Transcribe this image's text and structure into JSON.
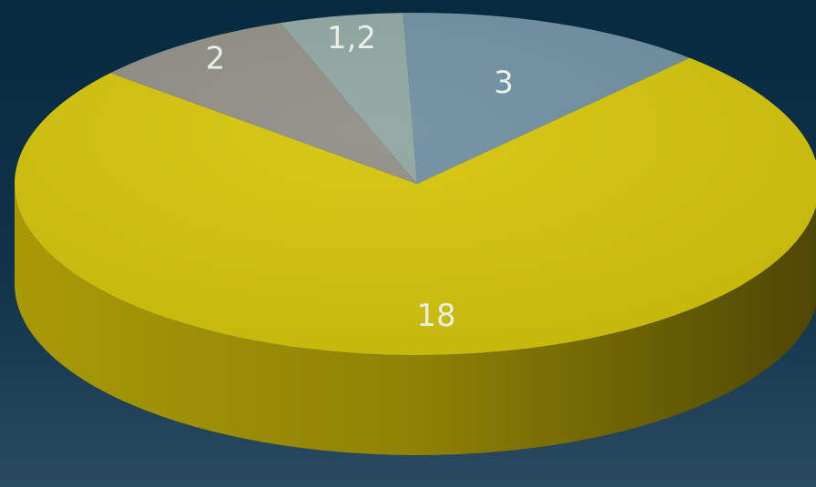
{
  "chart_data": {
    "type": "pie",
    "style": "3d",
    "categories": [
      "3",
      "18",
      "2",
      "1,2"
    ],
    "values": [
      3,
      18,
      2,
      1.2
    ],
    "labels": [
      "3",
      "18",
      "2",
      "1,2"
    ],
    "colors": [
      "#6f8fa0",
      "#d4c40a",
      "#8f8f86",
      "#8fa6a0"
    ],
    "title": "",
    "legend": "none"
  }
}
